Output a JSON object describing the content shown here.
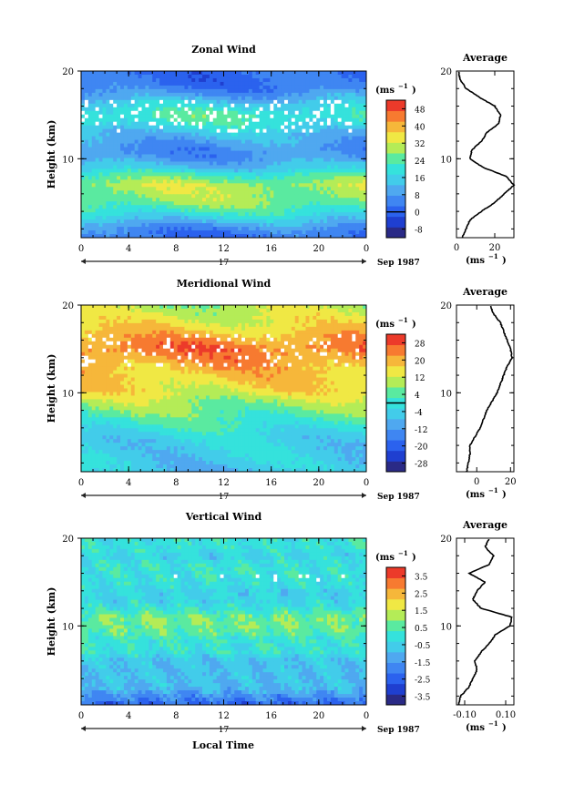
{
  "figure": {
    "date_label": "Sep 1987",
    "day_label": "17",
    "xlabel_bottom": "Local Time",
    "y_label": "Height (km)",
    "cbar_unit": "(ms",
    "cbar_unit_exp": "−1",
    "avg_xunit": "(ms",
    "avg_xunit_exp": "−1"
  },
  "chart_data": [
    {
      "type": "heatmap",
      "title": "Zonal Wind",
      "x_ticks": [
        "0",
        "4",
        "8",
        "12",
        "16",
        "20",
        "0"
      ],
      "xlim": [
        0,
        24
      ],
      "ylim": [
        1,
        20
      ],
      "y_ticks": [
        "10",
        "20"
      ],
      "colorbar": {
        "levels": [
          "-8",
          "0",
          "8",
          "16",
          "24",
          "32",
          "40",
          "48"
        ],
        "range": [
          -12,
          52
        ],
        "zero_level": 0
      },
      "profile_base": [
        [
          1,
          2
        ],
        [
          2,
          6
        ],
        [
          3,
          14
        ],
        [
          4,
          22
        ],
        [
          5,
          27
        ],
        [
          6,
          29
        ],
        [
          7,
          30
        ],
        [
          8,
          24
        ],
        [
          9,
          14
        ],
        [
          10,
          8
        ],
        [
          11,
          6
        ],
        [
          12,
          10
        ],
        [
          13,
          14
        ],
        [
          14,
          20
        ],
        [
          15,
          23
        ],
        [
          16,
          18
        ],
        [
          17,
          10
        ],
        [
          18,
          4
        ],
        [
          19,
          2
        ],
        [
          20,
          2
        ]
      ],
      "average": {
        "title": "Average",
        "x_ticks": [
          "0",
          "20"
        ],
        "xlim": [
          0,
          30
        ],
        "profile": [
          [
            1,
            3
          ],
          [
            2,
            5
          ],
          [
            3,
            7
          ],
          [
            4,
            13
          ],
          [
            5,
            20
          ],
          [
            6,
            25
          ],
          [
            7,
            30
          ],
          [
            8,
            26
          ],
          [
            9,
            14
          ],
          [
            10,
            7
          ],
          [
            11,
            8
          ],
          [
            12,
            13
          ],
          [
            13,
            16
          ],
          [
            14,
            22
          ],
          [
            15,
            23
          ],
          [
            16,
            20
          ],
          [
            17,
            12
          ],
          [
            18,
            5
          ],
          [
            19,
            2
          ],
          [
            20,
            1
          ]
        ]
      }
    },
    {
      "type": "heatmap",
      "title": "Meridional Wind",
      "x_ticks": [
        "0",
        "4",
        "8",
        "12",
        "16",
        "20",
        "0"
      ],
      "xlim": [
        0,
        24
      ],
      "ylim": [
        1,
        20
      ],
      "y_ticks": [
        "10",
        "20"
      ],
      "colorbar": {
        "levels": [
          "-28",
          "-20",
          "-12",
          "-4",
          "4",
          "12",
          "20",
          "28"
        ],
        "range": [
          -32,
          32
        ],
        "zero_level": 0
      },
      "profile_base": [
        [
          1,
          -6
        ],
        [
          2,
          -5
        ],
        [
          3,
          -4
        ],
        [
          4,
          -4
        ],
        [
          5,
          -3
        ],
        [
          6,
          0
        ],
        [
          7,
          3
        ],
        [
          8,
          6
        ],
        [
          9,
          9
        ],
        [
          10,
          14
        ],
        [
          11,
          16
        ],
        [
          12,
          18
        ],
        [
          13,
          20
        ],
        [
          14,
          23
        ],
        [
          15,
          25
        ],
        [
          16,
          22
        ],
        [
          17,
          18
        ],
        [
          18,
          14
        ],
        [
          19,
          12
        ],
        [
          20,
          10
        ]
      ],
      "average": {
        "title": "Average",
        "x_ticks": [
          "0",
          "20"
        ],
        "xlim": [
          -12,
          22
        ],
        "profile": [
          [
            1,
            -6
          ],
          [
            2,
            -5
          ],
          [
            3,
            -4
          ],
          [
            4,
            -4
          ],
          [
            5,
            -1
          ],
          [
            6,
            2
          ],
          [
            7,
            4
          ],
          [
            8,
            6
          ],
          [
            9,
            9
          ],
          [
            10,
            12
          ],
          [
            11,
            14
          ],
          [
            12,
            16
          ],
          [
            13,
            18
          ],
          [
            14,
            21
          ],
          [
            15,
            20
          ],
          [
            16,
            18
          ],
          [
            17,
            16
          ],
          [
            18,
            14
          ],
          [
            19,
            10
          ],
          [
            20,
            8
          ]
        ]
      }
    },
    {
      "type": "heatmap",
      "title": "Vertical Wind",
      "x_ticks": [
        "0",
        "4",
        "8",
        "12",
        "16",
        "20",
        "0"
      ],
      "xlim": [
        0,
        24
      ],
      "ylim": [
        1,
        20
      ],
      "y_ticks": [
        "10",
        "20"
      ],
      "colorbar": {
        "levels": [
          "-3.5",
          "-2.5",
          "-1.5",
          "-0.5",
          "0.5",
          "1.5",
          "2.5",
          "3.5"
        ],
        "range": [
          -4,
          4
        ],
        "zero_level": null
      },
      "profile_base": [
        [
          1,
          -0.3
        ],
        [
          2,
          -0.2
        ],
        [
          3,
          -0.1
        ],
        [
          4,
          -0.1
        ],
        [
          5,
          -0.1
        ],
        [
          6,
          -0.1
        ],
        [
          7,
          0.0
        ],
        [
          8,
          0.0
        ],
        [
          9,
          0.05
        ],
        [
          10,
          0.1
        ],
        [
          11,
          0.1
        ],
        [
          12,
          0.0
        ],
        [
          13,
          -0.05
        ],
        [
          14,
          -0.05
        ],
        [
          15,
          0.0
        ],
        [
          16,
          0.0
        ],
        [
          17,
          0.0
        ],
        [
          18,
          -0.05
        ],
        [
          19,
          0.0
        ],
        [
          20,
          0.0
        ]
      ],
      "average": {
        "title": "Average",
        "x_ticks": [
          "-0.10",
          "0.10"
        ],
        "xlim": [
          -0.14,
          0.14
        ],
        "profile": [
          [
            1,
            -0.13
          ],
          [
            2,
            -0.12
          ],
          [
            3,
            -0.08
          ],
          [
            4,
            -0.06
          ],
          [
            5,
            -0.04
          ],
          [
            6,
            -0.05
          ],
          [
            7,
            -0.02
          ],
          [
            8,
            0.02
          ],
          [
            9,
            0.05
          ],
          [
            10,
            0.12
          ],
          [
            11,
            0.13
          ],
          [
            12,
            -0.02
          ],
          [
            13,
            -0.06
          ],
          [
            14,
            -0.04
          ],
          [
            15,
            0.0
          ],
          [
            16,
            -0.08
          ],
          [
            17,
            0.02
          ],
          [
            18,
            0.04
          ],
          [
            19,
            0.0
          ],
          [
            20,
            0.02
          ]
        ]
      }
    }
  ]
}
